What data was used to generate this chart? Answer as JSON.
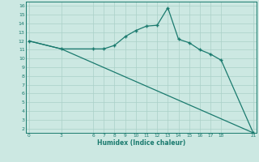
{
  "line1_x": [
    0,
    3,
    6,
    7,
    8,
    9,
    10,
    11,
    12,
    13,
    14,
    15,
    16,
    17,
    18,
    21
  ],
  "line1_y": [
    12.0,
    11.1,
    11.1,
    11.1,
    11.5,
    12.5,
    13.2,
    13.7,
    13.8,
    15.8,
    12.2,
    11.8,
    11.0,
    10.5,
    9.8,
    1.5
  ],
  "line2_x": [
    0,
    3,
    21
  ],
  "line2_y": [
    12.0,
    11.1,
    1.5
  ],
  "line_color": "#1a7a6e",
  "bg_color": "#cce8e2",
  "grid_color": "#aad0c8",
  "xlabel": "Humidex (Indice chaleur)",
  "xticks": [
    0,
    3,
    6,
    7,
    8,
    9,
    10,
    11,
    12,
    13,
    14,
    15,
    16,
    17,
    18,
    21
  ],
  "yticks": [
    2,
    3,
    4,
    5,
    6,
    7,
    8,
    9,
    10,
    11,
    12,
    13,
    14,
    15,
    16
  ],
  "xlim": [
    -0.3,
    21.3
  ],
  "ylim": [
    1.5,
    16.5
  ]
}
